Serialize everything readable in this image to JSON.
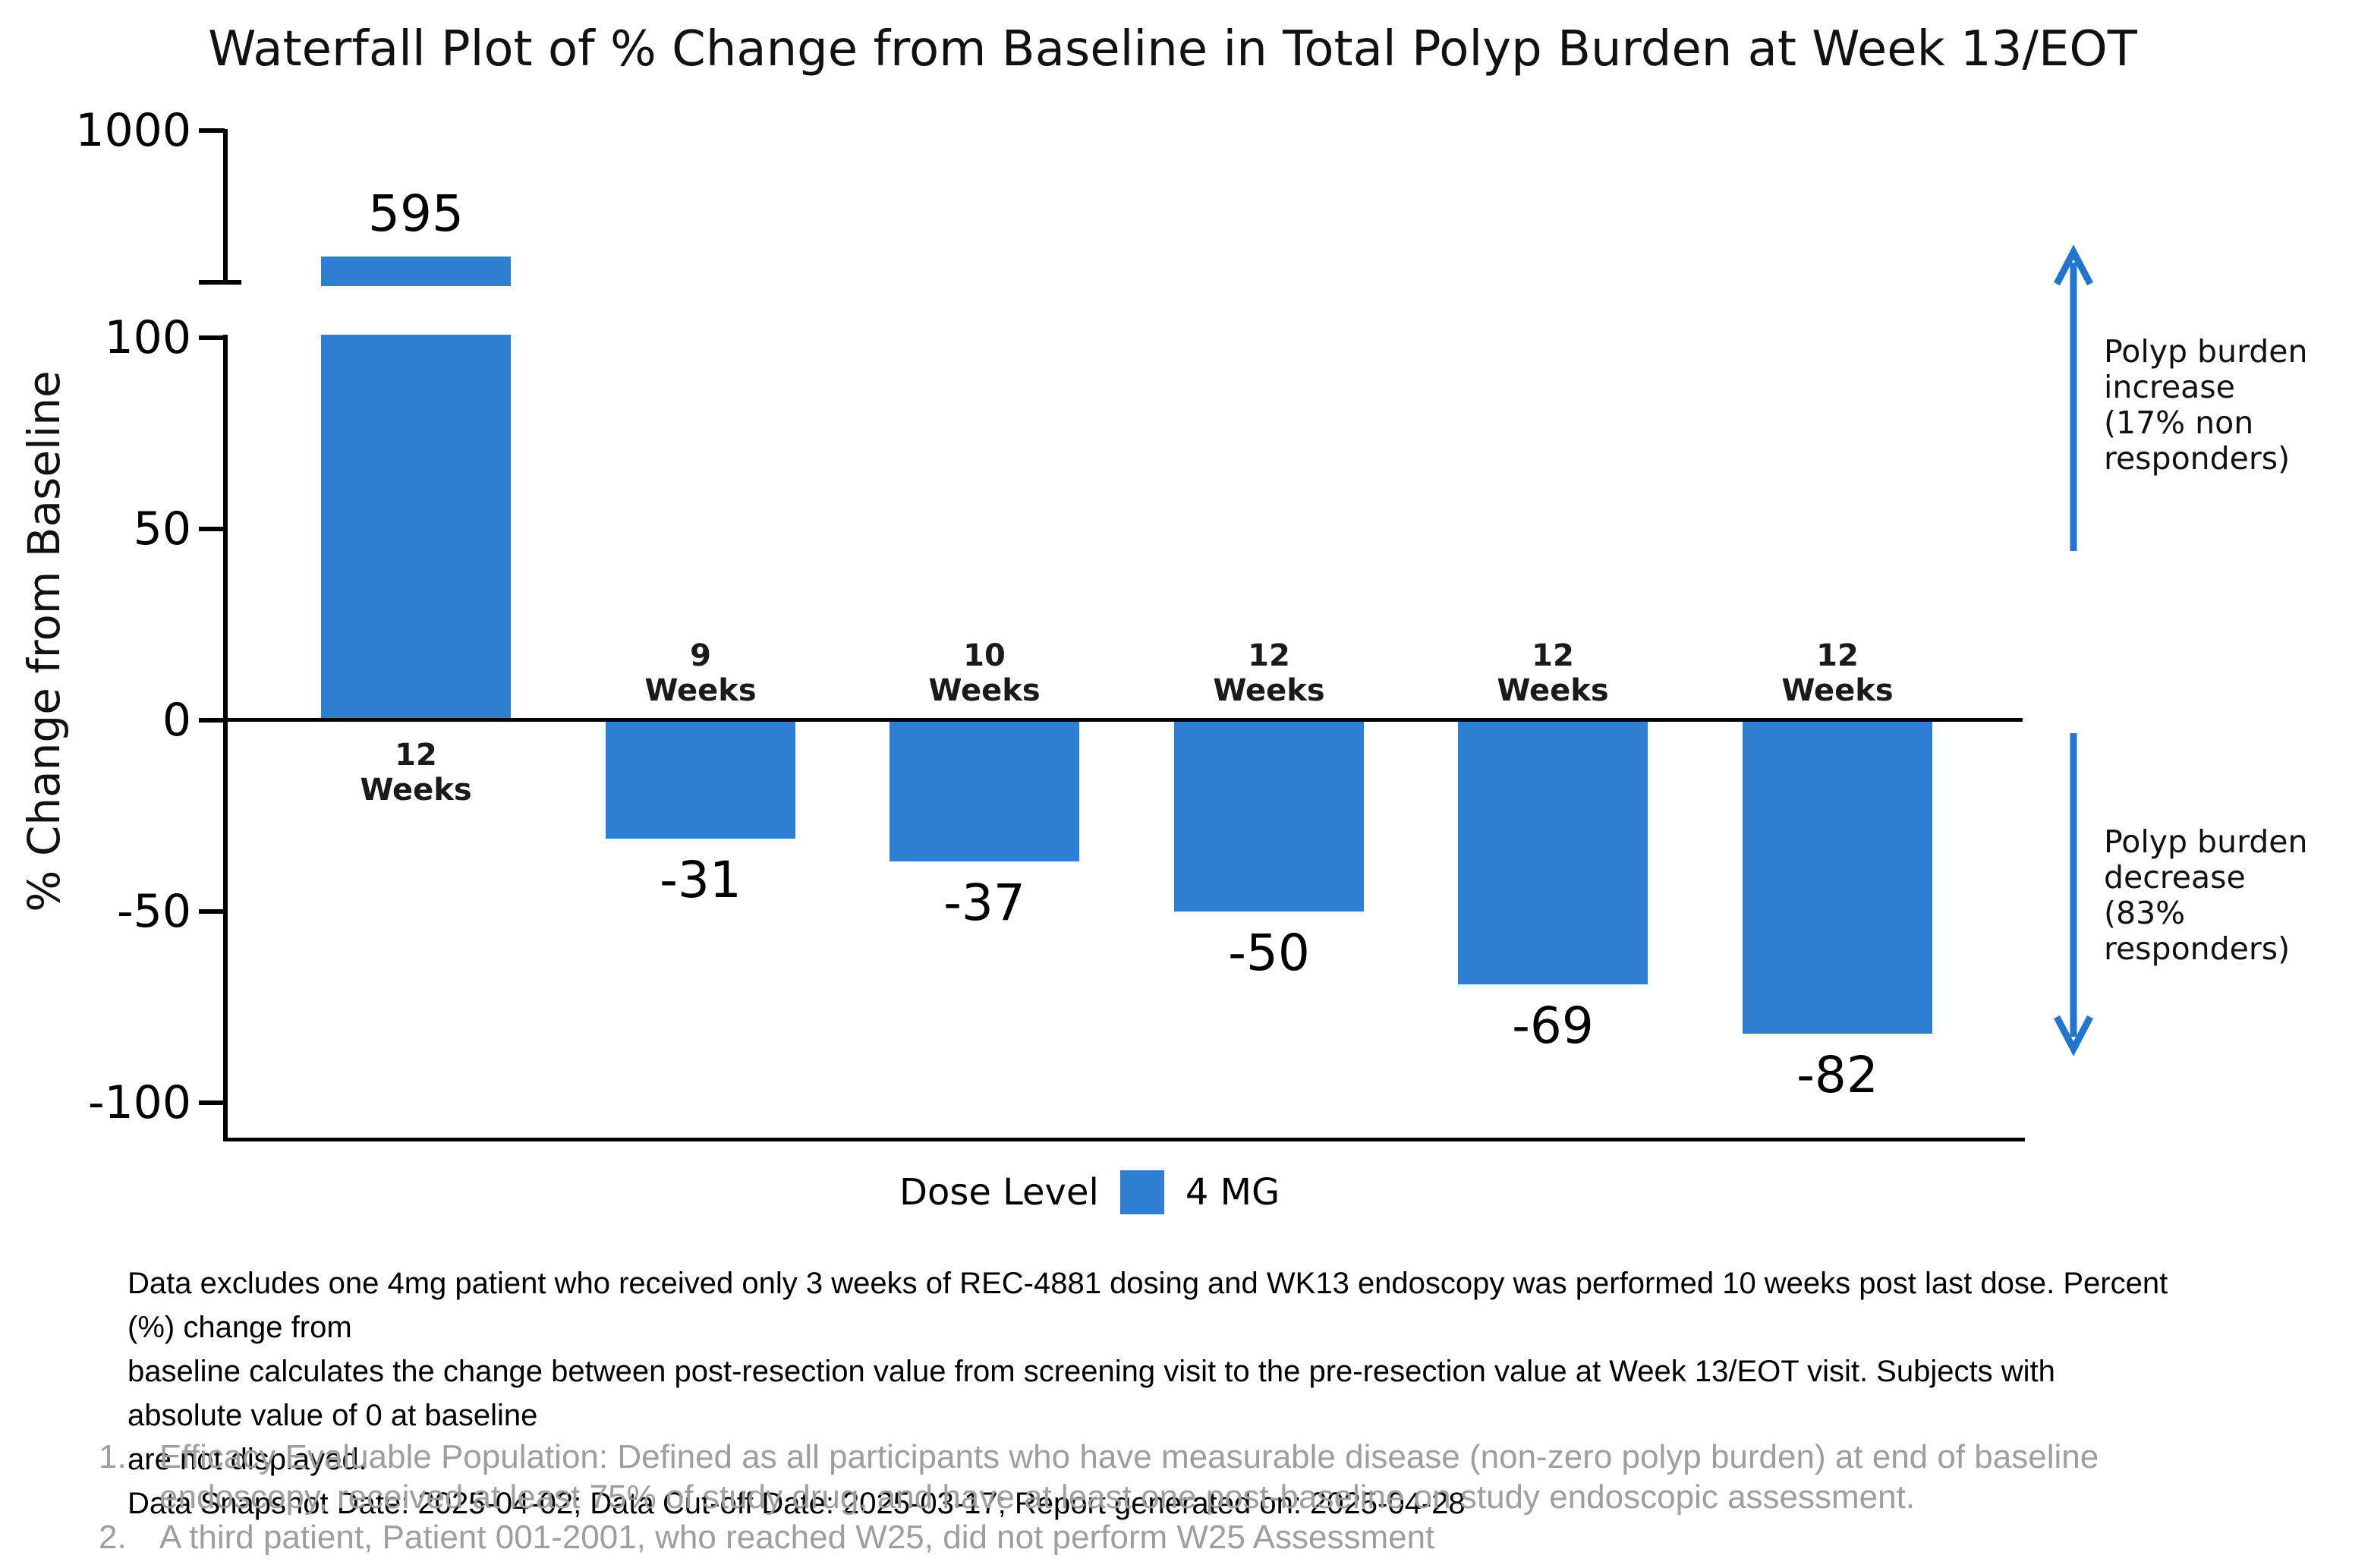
{
  "title": "Waterfall Plot of % Change from Baseline in Total Polyp Burden at Week 13/EOT",
  "chart_data": {
    "type": "bar",
    "title": "Waterfall Plot of % Change from Baseline in Total Polyp Burden at Week 13/EOT",
    "xlabel": "",
    "ylabel": "% Change from Baseline",
    "categories": [
      "12 Weeks",
      "9 Weeks",
      "10 Weeks",
      "12 Weeks",
      "12 Weeks",
      "12 Weeks"
    ],
    "values": [
      595,
      -31,
      -37,
      -50,
      -69,
      -82
    ],
    "series": [
      {
        "name": "4 MG",
        "values": [
          595,
          -31,
          -37,
          -50,
          -69,
          -82
        ]
      }
    ],
    "bar_color": "#2e7fd2",
    "yticks_main": [
      100,
      50,
      0,
      -50,
      -100
    ],
    "ytick_break_label": "1000",
    "ylim": [
      -110,
      1000
    ],
    "axis_break": {
      "enabled": true,
      "between_values": [
        100,
        1000
      ]
    },
    "grid": false,
    "legend": {
      "title": "Dose Level",
      "entries": [
        {
          "label": "4 MG",
          "color": "#2e7fd2"
        }
      ],
      "position": "bottom"
    }
  },
  "annotations": {
    "increase": {
      "arrow": "up",
      "color": "#2176cb",
      "lines": [
        "Polyp burden",
        "increase",
        "(17% non",
        "responders)"
      ]
    },
    "decrease": {
      "arrow": "down",
      "color": "#2176cb",
      "lines": [
        "Polyp burden",
        "decrease",
        "(83%",
        "responders)"
      ]
    }
  },
  "footnotes": {
    "lines": [
      "Data excludes one 4mg patient who received only 3 weeks of REC-4881 dosing and WK13 endoscopy was performed 10 weeks post last dose. Percent (%) change from",
      "baseline calculates the change between post-resection value from screening visit to the pre-resection value at Week 13/EOT visit. Subjects with absolute value of 0 at baseline",
      "are not displayed.",
      "Data Snapshot Date: 2025-04-02; Data Cut-off Date: 2025-03-17; Report generated on: 2025-04-28"
    ]
  },
  "notes": [
    {
      "num": "1.",
      "lines": [
        "Efficacy Evaluable Population: Defined as all participants who have measurable disease (non-zero polyp burden) at end of baseline",
        "endoscopy, received at least 75% of study drug, and have at least one post-baseline on study endoscopic assessment."
      ]
    },
    {
      "num": "2.",
      "lines": [
        "A third patient, Patient 001-2001, who reached W25, did not perform W25 Assessment"
      ]
    }
  ]
}
